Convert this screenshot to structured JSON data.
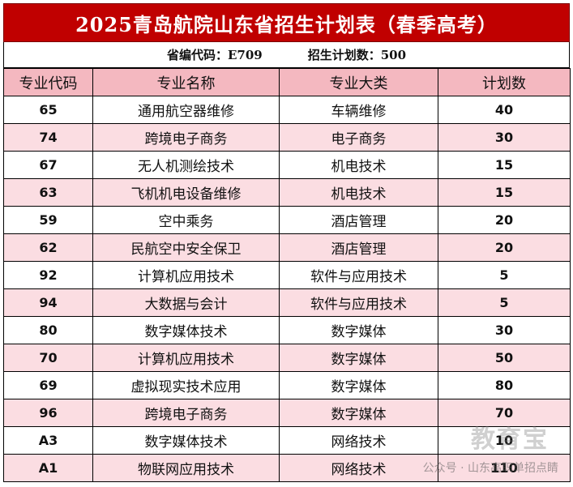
{
  "title": "2025青岛航院山东省招生计划表（春季高考）",
  "meta": {
    "province_code": "省编代码：E709",
    "plan_total": "招生计划数：500"
  },
  "columns": [
    "专业代码",
    "专业名称",
    "专业大类",
    "计划数"
  ],
  "rows": [
    {
      "code": "65",
      "name": "通用航空器维修",
      "category": "车辆维修",
      "count": "40"
    },
    {
      "code": "74",
      "name": "跨境电子商务",
      "category": "电子商务",
      "count": "30"
    },
    {
      "code": "67",
      "name": "无人机测绘技术",
      "category": "机电技术",
      "count": "15"
    },
    {
      "code": "63",
      "name": "飞机机电设备维修",
      "category": "机电技术",
      "count": "15"
    },
    {
      "code": "59",
      "name": "空中乘务",
      "category": "酒店管理",
      "count": "20"
    },
    {
      "code": "62",
      "name": "民航空中安全保卫",
      "category": "酒店管理",
      "count": "20"
    },
    {
      "code": "92",
      "name": "计算机应用技术",
      "category": "软件与应用技术",
      "count": "5"
    },
    {
      "code": "94",
      "name": "大数据与会计",
      "category": "软件与应用技术",
      "count": "5"
    },
    {
      "code": "80",
      "name": "数字媒体技术",
      "category": "数字媒体",
      "count": "30"
    },
    {
      "code": "70",
      "name": "计算机应用技术",
      "category": "数字媒体",
      "count": "50"
    },
    {
      "code": "69",
      "name": "虚拟现实技术应用",
      "category": "数字媒体",
      "count": "80"
    },
    {
      "code": "96",
      "name": "跨境电子商务",
      "category": "数字媒体",
      "count": "70"
    },
    {
      "code": "A3",
      "name": "数字媒体技术",
      "category": "网络技术",
      "count": "10"
    },
    {
      "code": "A1",
      "name": "物联网应用技术",
      "category": "网络技术",
      "count": "110"
    }
  ],
  "watermark": {
    "text": "公众号 · 山东高职单招点睛",
    "logo": "教育宝"
  },
  "colors": {
    "title_bg": "#c00000",
    "header_bg": "#f4b8c0",
    "alt_row_bg": "#fbdde2"
  }
}
